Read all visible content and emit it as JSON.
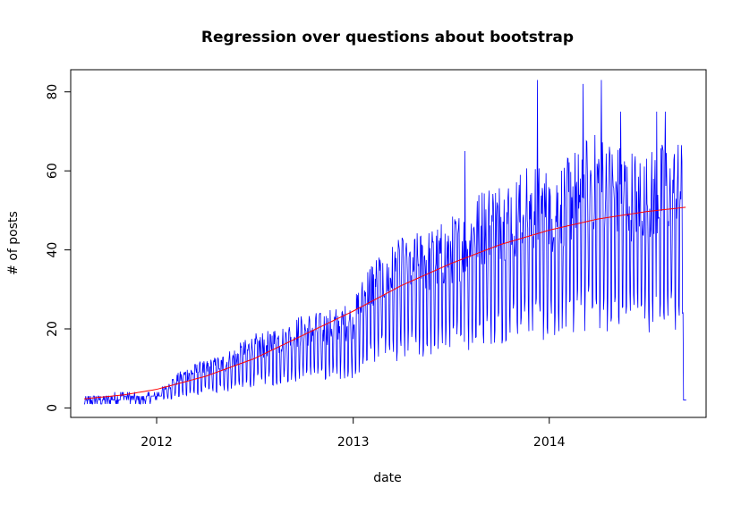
{
  "chart_data": {
    "type": "line",
    "title": "Regression over questions about bootstrap",
    "xlabel": "date",
    "ylabel": "# of posts",
    "x_ticks": [
      {
        "label": "2012",
        "date": "2012-01-01"
      },
      {
        "label": "2013",
        "date": "2013-01-01"
      },
      {
        "label": "2014",
        "date": "2014-01-01"
      }
    ],
    "y_ticks": [
      0,
      20,
      40,
      60,
      80
    ],
    "xlim": [
      "2011-07-25",
      "2014-10-20"
    ],
    "ylim": [
      -2.4,
      85.6
    ],
    "grid": false,
    "legend": "none",
    "series": [
      {
        "color": "#0000ff",
        "style": "daily-noisy",
        "points": [
          [
            "2011-08-19",
            1
          ],
          [
            "2011-09-01",
            2
          ],
          [
            "2011-10-01",
            2
          ],
          [
            "2011-11-01",
            3
          ],
          [
            "2011-12-01",
            2
          ],
          [
            "2012-01-01",
            3
          ],
          [
            "2012-02-01",
            6
          ],
          [
            "2012-03-01",
            8
          ],
          [
            "2012-04-01",
            9
          ],
          [
            "2012-05-01",
            10
          ],
          [
            "2012-06-01",
            12
          ],
          [
            "2012-07-01",
            14
          ],
          [
            "2012-08-01",
            15
          ],
          [
            "2012-09-01",
            16
          ],
          [
            "2012-10-01",
            18
          ],
          [
            "2012-11-01",
            18
          ],
          [
            "2012-12-01",
            19
          ],
          [
            "2013-01-01",
            20
          ],
          [
            "2013-02-01",
            28
          ],
          [
            "2013-03-01",
            30
          ],
          [
            "2013-04-01",
            32
          ],
          [
            "2013-05-01",
            33
          ],
          [
            "2013-06-01",
            34
          ],
          [
            "2013-07-01",
            36
          ],
          [
            "2013-08-01",
            38
          ],
          [
            "2013-09-01",
            42
          ],
          [
            "2013-10-01",
            43
          ],
          [
            "2013-11-01",
            44
          ],
          [
            "2013-12-01",
            46
          ],
          [
            "2014-01-01",
            45
          ],
          [
            "2014-02-01",
            47
          ],
          [
            "2014-03-01",
            50
          ],
          [
            "2014-04-01",
            52
          ],
          [
            "2014-05-01",
            50
          ],
          [
            "2014-06-01",
            49
          ],
          [
            "2014-07-01",
            48
          ],
          [
            "2014-08-01",
            50
          ],
          [
            "2014-09-07",
            50
          ],
          [
            "2014-09-13",
            2
          ]
        ],
        "peaks": [
          [
            "2013-12-10",
            83
          ],
          [
            "2014-03-05",
            82
          ],
          [
            "2014-04-08",
            83
          ],
          [
            "2014-07-20",
            75
          ],
          [
            "2014-08-05",
            75
          ],
          [
            "2014-05-14",
            75
          ],
          [
            "2013-07-28",
            65
          ]
        ]
      },
      {
        "color": "#ff0000",
        "style": "regression",
        "points": [
          [
            "2011-08-19",
            2.3
          ],
          [
            "2011-11-01",
            3.3
          ],
          [
            "2012-01-01",
            4.7
          ],
          [
            "2012-04-01",
            8.0
          ],
          [
            "2012-07-01",
            12.5
          ],
          [
            "2012-10-01",
            18.5
          ],
          [
            "2013-01-01",
            24.5
          ],
          [
            "2013-04-01",
            31.0
          ],
          [
            "2013-07-01",
            36.5
          ],
          [
            "2013-10-01",
            41.3
          ],
          [
            "2014-01-01",
            45.0
          ],
          [
            "2014-04-01",
            47.8
          ],
          [
            "2014-07-01",
            49.7
          ],
          [
            "2014-09-13",
            50.8
          ]
        ]
      }
    ]
  }
}
